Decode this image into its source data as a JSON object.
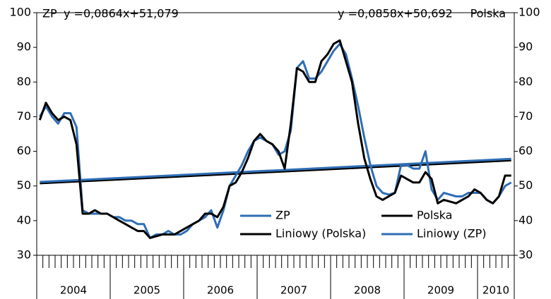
{
  "chart_data": {
    "type": "line",
    "categories": [
      "2004",
      null,
      null,
      null,
      null,
      null,
      null,
      null,
      null,
      null,
      null,
      null,
      "2005",
      null,
      null,
      null,
      null,
      null,
      null,
      null,
      null,
      null,
      null,
      null,
      "2006",
      null,
      null,
      null,
      null,
      null,
      null,
      null,
      null,
      null,
      null,
      null,
      "2007",
      null,
      null,
      null,
      null,
      null,
      null,
      null,
      null,
      null,
      null,
      null,
      "2008",
      null,
      null,
      null,
      null,
      null,
      null,
      null,
      null,
      null,
      null,
      null,
      "2009",
      null,
      null,
      null,
      null,
      null,
      null,
      null,
      null,
      null,
      null,
      null,
      "2010",
      null,
      null,
      null,
      null,
      null
    ],
    "series": [
      {
        "name": "ZP",
        "color": "#2f6eb5",
        "values": [
          70,
          73,
          70,
          68,
          71,
          71,
          67,
          43,
          42,
          42,
          42,
          42,
          41,
          41,
          40,
          40,
          39,
          39,
          35,
          36,
          36,
          37,
          36,
          36,
          37,
          39,
          40,
          41,
          43,
          38,
          43,
          50,
          53,
          56,
          60,
          63,
          64,
          63,
          62,
          59,
          60,
          66,
          84,
          86,
          81,
          81,
          83,
          86,
          89,
          91,
          88,
          81,
          73,
          64,
          56,
          50,
          48,
          47.5,
          48,
          56,
          56,
          55,
          55,
          60,
          49,
          46,
          48,
          47.5,
          47,
          47,
          48,
          48,
          48,
          46,
          45,
          47,
          50,
          51
        ]
      },
      {
        "name": "Polska",
        "color": "#000000",
        "values": [
          69,
          74,
          71,
          69,
          70,
          69,
          62,
          42,
          42,
          43,
          42,
          42,
          41,
          40,
          39,
          38,
          37,
          37,
          35,
          35.5,
          36,
          36,
          36,
          37,
          38,
          39,
          40,
          42,
          42,
          41,
          44,
          50,
          51,
          54,
          58,
          63,
          65,
          63,
          62,
          60,
          55,
          68,
          84,
          83,
          80,
          80,
          86,
          88,
          91,
          92,
          86,
          80,
          68,
          58,
          52,
          47,
          46,
          47,
          48,
          53,
          52,
          51,
          51,
          54,
          52,
          45,
          46,
          45.5,
          45,
          46,
          47,
          49,
          48,
          46,
          45,
          47,
          53,
          53
        ]
      }
    ],
    "trendlines": [
      {
        "name": "Liniowy (Polska)",
        "color": "#000000",
        "slope": 0.0858,
        "intercept": 50.692,
        "equation": "y =0,0858x+50,692",
        "series_label": "Polska"
      },
      {
        "name": "Liniowy (ZP)",
        "color": "#2f6eb5",
        "slope": 0.0864,
        "intercept": 51.079,
        "equation": "y =0,0864x+51,079",
        "series_label": "ZP"
      }
    ],
    "ylim": [
      30,
      100
    ],
    "yticks": [
      30,
      40,
      50,
      60,
      70,
      80,
      90,
      100
    ]
  }
}
